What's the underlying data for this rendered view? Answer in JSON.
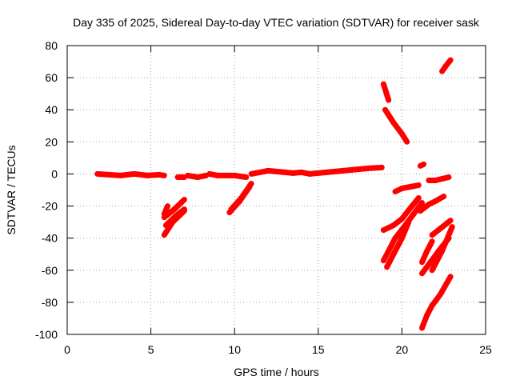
{
  "chart_data": {
    "type": "scatter",
    "title": "Day 335 of 2025, Sidereal Day-to-day VTEC variation (SDTVAR) for receiver sask",
    "xlabel": "GPS time / hours",
    "ylabel": "SDTVAR / TECUs",
    "xlim": [
      0,
      25
    ],
    "ylim": [
      -100,
      80
    ],
    "x_ticks": [
      0,
      5,
      10,
      15,
      20,
      25
    ],
    "y_ticks": [
      -100,
      -80,
      -60,
      -40,
      -20,
      0,
      20,
      40,
      60,
      80
    ],
    "x_tick_labels": [
      "0",
      "5",
      "10",
      "15",
      "20",
      "25"
    ],
    "y_tick_labels": [
      "-100",
      "-80",
      "-60",
      "-40",
      "-20",
      "0",
      "20",
      "40",
      "60",
      "80"
    ],
    "grid": true,
    "legend": "none",
    "series_color": "#ff0000",
    "segments": [
      {
        "x": [
          1.8,
          2.5,
          3.2,
          4.0,
          4.8,
          5.5,
          5.8
        ],
        "y": [
          0,
          -0.5,
          -1,
          0,
          -1,
          -0.5,
          -1
        ]
      },
      {
        "x": [
          6.6,
          7.0
        ],
        "y": [
          -2,
          -2
        ]
      },
      {
        "x": [
          7.2,
          7.8,
          8.3
        ],
        "y": [
          -1,
          -2,
          -1
        ]
      },
      {
        "x": [
          8.5,
          9.0,
          9.5,
          10.0,
          10.7
        ],
        "y": [
          0,
          -1,
          -1,
          -1,
          -2
        ]
      },
      {
        "x": [
          11.0,
          11.5,
          12.0,
          12.5,
          13.0,
          13.5,
          14.0,
          14.5
        ],
        "y": [
          0,
          1,
          2,
          1.5,
          1,
          0.5,
          1,
          0
        ]
      },
      {
        "x": [
          14.5,
          15.0,
          15.5,
          16.0,
          16.5,
          17.0,
          17.5,
          18.0,
          18.8
        ],
        "y": [
          0,
          0.5,
          1,
          1.5,
          2,
          2.5,
          3,
          3.5,
          4
        ]
      },
      {
        "x": [
          5.8,
          6.0
        ],
        "y": [
          -25,
          -20
        ]
      },
      {
        "x": [
          5.8,
          6.4,
          7.0
        ],
        "y": [
          -27,
          -22,
          -16
        ]
      },
      {
        "x": [
          5.8,
          6.3,
          7.0
        ],
        "y": [
          -38,
          -30,
          -23
        ]
      },
      {
        "x": [
          5.9,
          6.5,
          7.0
        ],
        "y": [
          -32,
          -26,
          -22
        ]
      },
      {
        "x": [
          9.7,
          10.3,
          10.9
        ],
        "y": [
          -24,
          -17,
          -8
        ]
      },
      {
        "x": [
          9.8,
          10.4,
          11.0
        ],
        "y": [
          -22,
          -15,
          -6
        ]
      },
      {
        "x": [
          18.9,
          19.2
        ],
        "y": [
          56,
          46
        ]
      },
      {
        "x": [
          19.0,
          19.5,
          20.0,
          20.3
        ],
        "y": [
          40,
          32,
          25,
          20
        ]
      },
      {
        "x": [
          19.6,
          20.0,
          20.5,
          21.0
        ],
        "y": [
          -11,
          -9,
          -8,
          -7
        ]
      },
      {
        "x": [
          21.1,
          21.3
        ],
        "y": [
          5,
          6
        ]
      },
      {
        "x": [
          21.6,
          22.0,
          22.4,
          22.8
        ],
        "y": [
          -4,
          -4,
          -3,
          -2
        ]
      },
      {
        "x": [
          18.9,
          19.5,
          20.0,
          20.6,
          21.0
        ],
        "y": [
          -35,
          -32,
          -28,
          -20,
          -15
        ]
      },
      {
        "x": [
          18.9,
          19.3,
          19.6
        ],
        "y": [
          -54,
          -46,
          -40
        ]
      },
      {
        "x": [
          19.1,
          19.5,
          20.0,
          20.4
        ],
        "y": [
          -58,
          -50,
          -40,
          -30
        ]
      },
      {
        "x": [
          19.6,
          20.2,
          20.7,
          21.2
        ],
        "y": [
          -40,
          -32,
          -25,
          -18
        ]
      },
      {
        "x": [
          21.1,
          21.6,
          22.0,
          22.5
        ],
        "y": [
          -23,
          -19,
          -17,
          -14
        ]
      },
      {
        "x": [
          21.2,
          21.5,
          21.8
        ],
        "y": [
          -55,
          -48,
          -42
        ]
      },
      {
        "x": [
          21.2,
          21.7,
          22.2,
          22.8
        ],
        "y": [
          -62,
          -55,
          -48,
          -40
        ]
      },
      {
        "x": [
          21.8,
          22.3,
          22.9
        ],
        "y": [
          -38,
          -34,
          -29
        ]
      },
      {
        "x": [
          21.8,
          22.4,
          23.0
        ],
        "y": [
          -60,
          -48,
          -33
        ]
      },
      {
        "x": [
          21.2,
          21.5,
          21.8
        ],
        "y": [
          -96,
          -88,
          -82
        ]
      },
      {
        "x": [
          21.8,
          22.3,
          22.9
        ],
        "y": [
          -82,
          -75,
          -64
        ]
      },
      {
        "x": [
          22.4,
          22.6,
          22.9
        ],
        "y": [
          64,
          67,
          71
        ]
      }
    ]
  }
}
